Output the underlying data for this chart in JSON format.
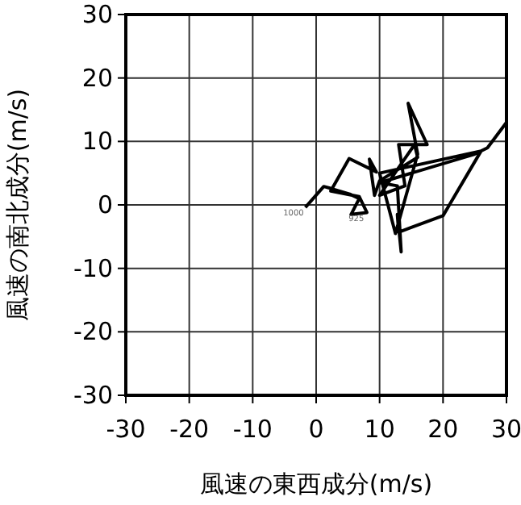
{
  "chart_data": {
    "type": "line",
    "xlabel": "風速の東西成分(m/s)",
    "ylabel": "風速の南北成分(m/s)",
    "xlim": [
      -30,
      30
    ],
    "ylim": [
      -30,
      30
    ],
    "xticks": [
      -30,
      -20,
      -10,
      0,
      10,
      20,
      30
    ],
    "yticks": [
      -30,
      -20,
      -10,
      0,
      10,
      20,
      30
    ],
    "grid": true,
    "marker": "none",
    "line_style": "solid",
    "annotations": [
      {
        "text": "1000",
        "x": -1.7,
        "y": -0.4
      },
      {
        "text": "925",
        "x": 7.8,
        "y": -1.3
      }
    ],
    "series": [
      {
        "color": "#000000",
        "x": [
          -1.7,
          1.2,
          2.3,
          5.3,
          6.8,
          5.5,
          8,
          6.8,
          2.3,
          5.2,
          9.5,
          8.4,
          9.2,
          10,
          16,
          15.5,
          10,
          14,
          13,
          17.5,
          14.5,
          16,
          12.5,
          10,
          26,
          20,
          13,
          12.8,
          13.4,
          12.8,
          10,
          25,
          27,
          30,
          30
        ],
        "values": [
          -0.4,
          2.9,
          2.6,
          1.7,
          1,
          -1.5,
          -1.2,
          1.3,
          2.2,
          7.3,
          5.2,
          7.2,
          1.5,
          3.8,
          7.5,
          9.5,
          1.5,
          3,
          9.5,
          9.5,
          16,
          8,
          -4.5,
          5,
          8.5,
          -1.7,
          -4.3,
          -1.5,
          -7.4,
          3,
          3.5,
          8,
          9,
          13,
          11.5
        ]
      }
    ]
  }
}
